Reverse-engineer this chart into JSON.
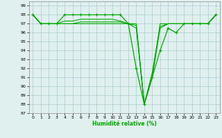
{
  "xlabel": "Humidité relative (%)",
  "bg_color": "#dff0ee",
  "grid_color": "#aacccc",
  "line_color": "#00aa00",
  "xlim": [
    -0.5,
    23.5
  ],
  "ylim": [
    87,
    99.5
  ],
  "yticks": [
    87,
    88,
    89,
    90,
    91,
    92,
    93,
    94,
    95,
    96,
    97,
    98,
    99
  ],
  "xticks": [
    0,
    1,
    2,
    3,
    4,
    5,
    6,
    7,
    8,
    9,
    10,
    11,
    12,
    13,
    14,
    15,
    16,
    17,
    18,
    19,
    20,
    21,
    22,
    23
  ],
  "curves": [
    {
      "x": [
        0,
        1,
        2,
        3,
        4,
        5,
        6,
        7,
        8,
        9,
        10,
        11,
        12,
        13,
        14,
        15,
        16,
        17,
        18,
        19,
        20,
        21,
        22,
        23
      ],
      "y": [
        98,
        97,
        97,
        97,
        98,
        98,
        98,
        98,
        98,
        98,
        98,
        98,
        97,
        92,
        88,
        91,
        94,
        96.5,
        96,
        97,
        97,
        97,
        97,
        98
      ],
      "marker": "+"
    },
    {
      "x": [
        0,
        1,
        2,
        3,
        4,
        5,
        6,
        7,
        8,
        9,
        10,
        11,
        12,
        13,
        14,
        15,
        16,
        17,
        18,
        19,
        20,
        21,
        22,
        23
      ],
      "y": [
        98,
        97,
        97,
        97,
        97,
        97,
        97,
        97,
        97,
        97,
        97,
        97,
        97,
        97,
        88,
        91,
        97,
        97,
        97,
        97,
        97,
        97,
        97,
        98
      ],
      "marker": null
    },
    {
      "x": [
        0,
        1,
        2,
        3,
        4,
        5,
        6,
        7,
        8,
        9,
        10,
        11,
        12,
        13,
        14,
        15,
        16,
        17,
        18,
        19,
        20,
        21,
        22,
        23
      ],
      "y": [
        98,
        97,
        97,
        97,
        97,
        97,
        97.2,
        97.2,
        97.2,
        97.2,
        97.2,
        97.2,
        97,
        96.8,
        88,
        91,
        96.5,
        97,
        97,
        97,
        97,
        97,
        97,
        98
      ],
      "marker": null
    },
    {
      "x": [
        0,
        1,
        2,
        3,
        4,
        5,
        6,
        7,
        8,
        9,
        10,
        11,
        12,
        13,
        14,
        15,
        16,
        17,
        18,
        19,
        20,
        21,
        22,
        23
      ],
      "y": [
        98,
        97,
        97,
        97,
        97.3,
        97.3,
        97.5,
        97.5,
        97.5,
        97.5,
        97.5,
        97.3,
        97,
        96.5,
        88,
        91.5,
        96.7,
        97,
        97,
        97,
        97,
        97,
        97,
        98
      ],
      "marker": null
    }
  ]
}
